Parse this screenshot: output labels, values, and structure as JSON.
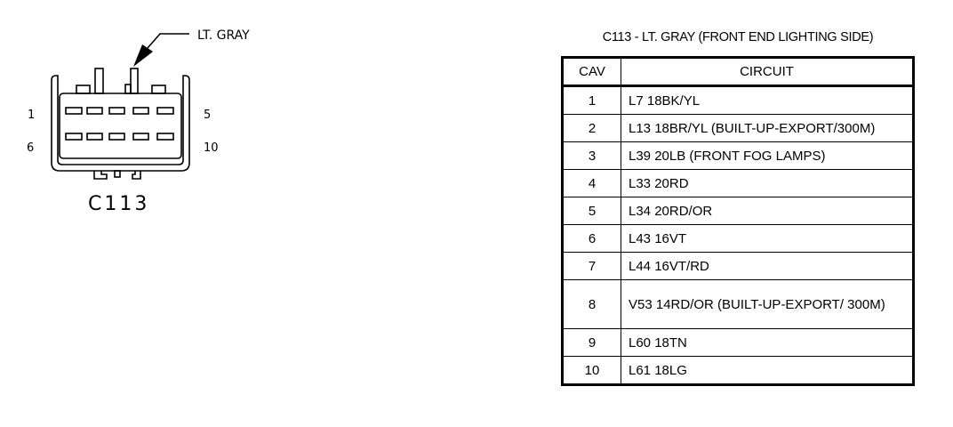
{
  "diagram": {
    "callout_label": "LT. GRAY",
    "connector_name": "C113",
    "pin_labels": {
      "top_left": "1",
      "top_right": "5",
      "bottom_left": "6",
      "bottom_right": "10"
    }
  },
  "table": {
    "title": "C113 - LT. GRAY (FRONT END LIGHTING SIDE)",
    "headers": [
      "CAV",
      "CIRCUIT"
    ],
    "rows": [
      {
        "cav": "1",
        "circuit": "L7 18BK/YL"
      },
      {
        "cav": "2",
        "circuit": "L13 18BR/YL (BUILT-UP-EXPORT/300M)"
      },
      {
        "cav": "3",
        "circuit": "L39 20LB (FRONT FOG LAMPS)"
      },
      {
        "cav": "4",
        "circuit": "L33 20RD"
      },
      {
        "cav": "5",
        "circuit": "L34 20RD/OR"
      },
      {
        "cav": "6",
        "circuit": "L43 16VT"
      },
      {
        "cav": "7",
        "circuit": "L44 16VT/RD"
      },
      {
        "cav": "8",
        "circuit": "V53 14RD/OR (BUILT-UP-EXPORT/ 300M)"
      },
      {
        "cav": "9",
        "circuit": "L60 18TN"
      },
      {
        "cav": "10",
        "circuit": "L61 18LG"
      }
    ]
  }
}
